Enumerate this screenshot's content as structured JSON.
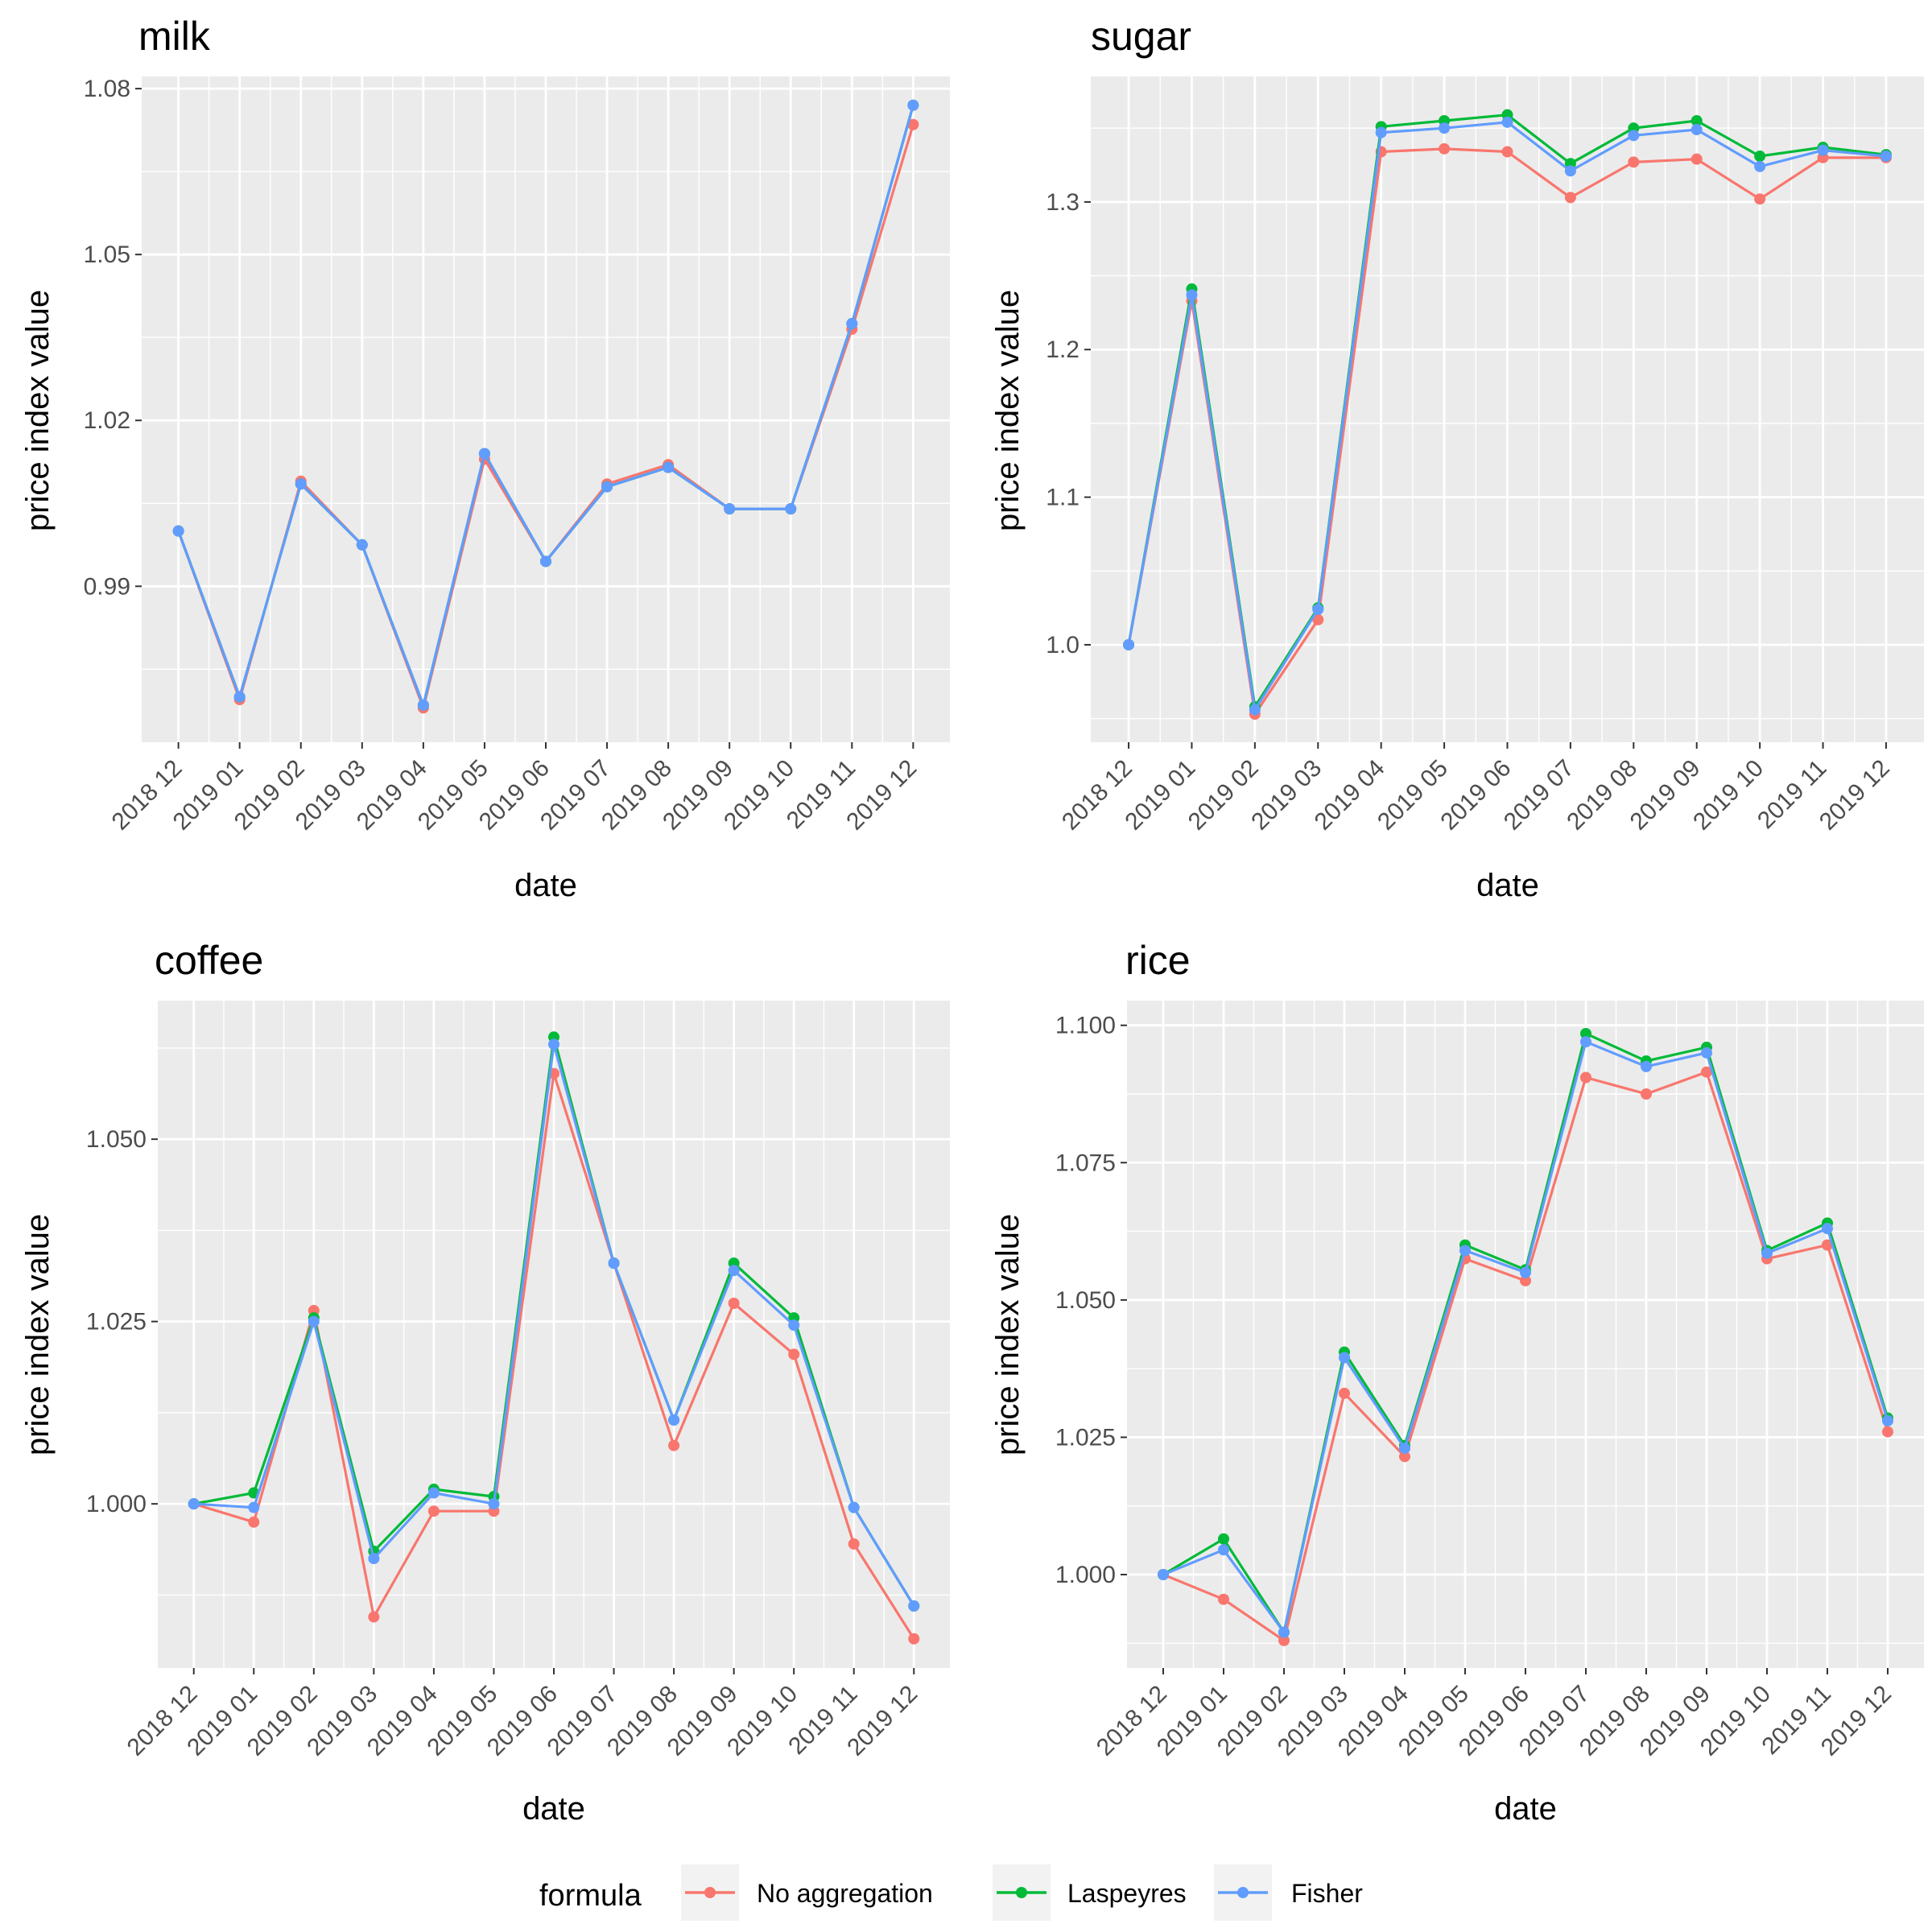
{
  "series_colors": {
    "No aggregation": "#F8766D",
    "Laspeyres": "#00BA38",
    "Fisher": "#619CFF"
  },
  "legend": {
    "title": "formula",
    "items": [
      "No aggregation",
      "Laspeyres",
      "Fisher"
    ]
  },
  "chart_data": [
    {
      "type": "line",
      "title": "milk",
      "xlabel": "date",
      "ylabel": "price index value",
      "categories": [
        "2018 12",
        "2019 01",
        "2019 02",
        "2019 03",
        "2019 04",
        "2019 05",
        "2019 06",
        "2019 07",
        "2019 08",
        "2019 09",
        "2019 10",
        "2019 11",
        "2019 12"
      ],
      "ylim": [
        0.9618,
        1.0822
      ],
      "yticks": [
        0.99,
        1.02,
        1.05,
        1.08
      ],
      "ytick_labels": [
        "0.99",
        "1.02",
        "1.05",
        "1.08"
      ],
      "series": [
        {
          "name": "No aggregation",
          "values": [
            1.0,
            0.9695,
            1.009,
            0.9975,
            0.968,
            1.013,
            0.9945,
            1.0085,
            1.012,
            1.004,
            1.004,
            1.0365,
            1.0735
          ]
        },
        {
          "name": "Laspeyres",
          "values": [
            1.0,
            0.97,
            1.0085,
            0.9975,
            0.9685,
            1.014,
            0.9945,
            1.008,
            1.0115,
            1.004,
            1.004,
            1.0375,
            1.077
          ]
        },
        {
          "name": "Fisher",
          "values": [
            1.0,
            0.97,
            1.0085,
            0.9975,
            0.9685,
            1.014,
            0.9945,
            1.008,
            1.0115,
            1.004,
            1.004,
            1.0375,
            1.077
          ]
        }
      ]
    },
    {
      "type": "line",
      "title": "sugar",
      "xlabel": "date",
      "ylabel": "price index value",
      "categories": [
        "2018 12",
        "2019 01",
        "2019 02",
        "2019 03",
        "2019 04",
        "2019 05",
        "2019 06",
        "2019 07",
        "2019 08",
        "2019 09",
        "2019 10",
        "2019 11",
        "2019 12"
      ],
      "ylim": [
        0.934,
        1.385
      ],
      "yticks": [
        1.0,
        1.1,
        1.2,
        1.3
      ],
      "ytick_labels": [
        "1.0",
        "1.1",
        "1.2",
        "1.3"
      ],
      "series": [
        {
          "name": "No aggregation",
          "values": [
            1.0,
            1.233,
            0.953,
            1.017,
            1.334,
            1.336,
            1.334,
            1.303,
            1.327,
            1.329,
            1.302,
            1.33,
            1.33
          ]
        },
        {
          "name": "Laspeyres",
          "values": [
            1.0,
            1.241,
            0.958,
            1.025,
            1.351,
            1.355,
            1.359,
            1.326,
            1.35,
            1.355,
            1.331,
            1.337,
            1.332
          ]
        },
        {
          "name": "Fisher",
          "values": [
            1.0,
            1.237,
            0.956,
            1.024,
            1.347,
            1.35,
            1.354,
            1.321,
            1.345,
            1.349,
            1.324,
            1.335,
            1.331
          ]
        }
      ]
    },
    {
      "type": "line",
      "title": "coffee",
      "xlabel": "date",
      "ylabel": "price index value",
      "categories": [
        "2018 12",
        "2019 01",
        "2019 02",
        "2019 03",
        "2019 04",
        "2019 05",
        "2019 06",
        "2019 07",
        "2019 08",
        "2019 09",
        "2019 10",
        "2019 11",
        "2019 12"
      ],
      "ylim": [
        0.9775,
        1.069
      ],
      "yticks": [
        1.0,
        1.025,
        1.05
      ],
      "ytick_labels": [
        "1.000",
        "1.025",
        "1.050"
      ],
      "series": [
        {
          "name": "No aggregation",
          "values": [
            1.0,
            0.9975,
            1.0265,
            0.9845,
            0.999,
            0.999,
            1.059,
            1.033,
            1.008,
            1.0275,
            1.0205,
            0.9945,
            0.9815
          ]
        },
        {
          "name": "Laspeyres",
          "values": [
            1.0,
            1.0015,
            1.0255,
            0.9935,
            1.002,
            1.001,
            1.064,
            1.033,
            1.0115,
            1.033,
            1.0255,
            0.9995,
            0.986
          ]
        },
        {
          "name": "Fisher",
          "values": [
            1.0,
            0.9995,
            1.025,
            0.9925,
            1.0015,
            1.0,
            1.063,
            1.033,
            1.0115,
            1.032,
            1.0245,
            0.9995,
            0.986
          ]
        }
      ]
    },
    {
      "type": "line",
      "title": "rice",
      "xlabel": "date",
      "ylabel": "price index value",
      "categories": [
        "2018 12",
        "2019 01",
        "2019 02",
        "2019 03",
        "2019 04",
        "2019 05",
        "2019 06",
        "2019 07",
        "2019 08",
        "2019 09",
        "2019 10",
        "2019 11",
        "2019 12"
      ],
      "ylim": [
        0.983,
        1.1045
      ],
      "yticks": [
        1.0,
        1.025,
        1.05,
        1.075,
        1.1
      ],
      "ytick_labels": [
        "1.000",
        "1.025",
        "1.050",
        "1.075",
        "1.100"
      ],
      "series": [
        {
          "name": "No aggregation",
          "values": [
            1.0,
            0.9955,
            0.988,
            1.033,
            1.0215,
            1.0575,
            1.0535,
            1.0905,
            1.0875,
            1.0915,
            1.0575,
            1.06,
            1.026
          ]
        },
        {
          "name": "Laspeyres",
          "values": [
            1.0,
            1.0065,
            0.9895,
            1.0405,
            1.0235,
            1.06,
            1.0555,
            1.0985,
            1.0935,
            1.096,
            1.059,
            1.064,
            1.0285
          ]
        },
        {
          "name": "Fisher",
          "values": [
            1.0,
            1.0045,
            0.9895,
            1.0395,
            1.023,
            1.059,
            1.055,
            1.097,
            1.0925,
            1.095,
            1.0585,
            1.063,
            1.028
          ]
        }
      ]
    }
  ]
}
